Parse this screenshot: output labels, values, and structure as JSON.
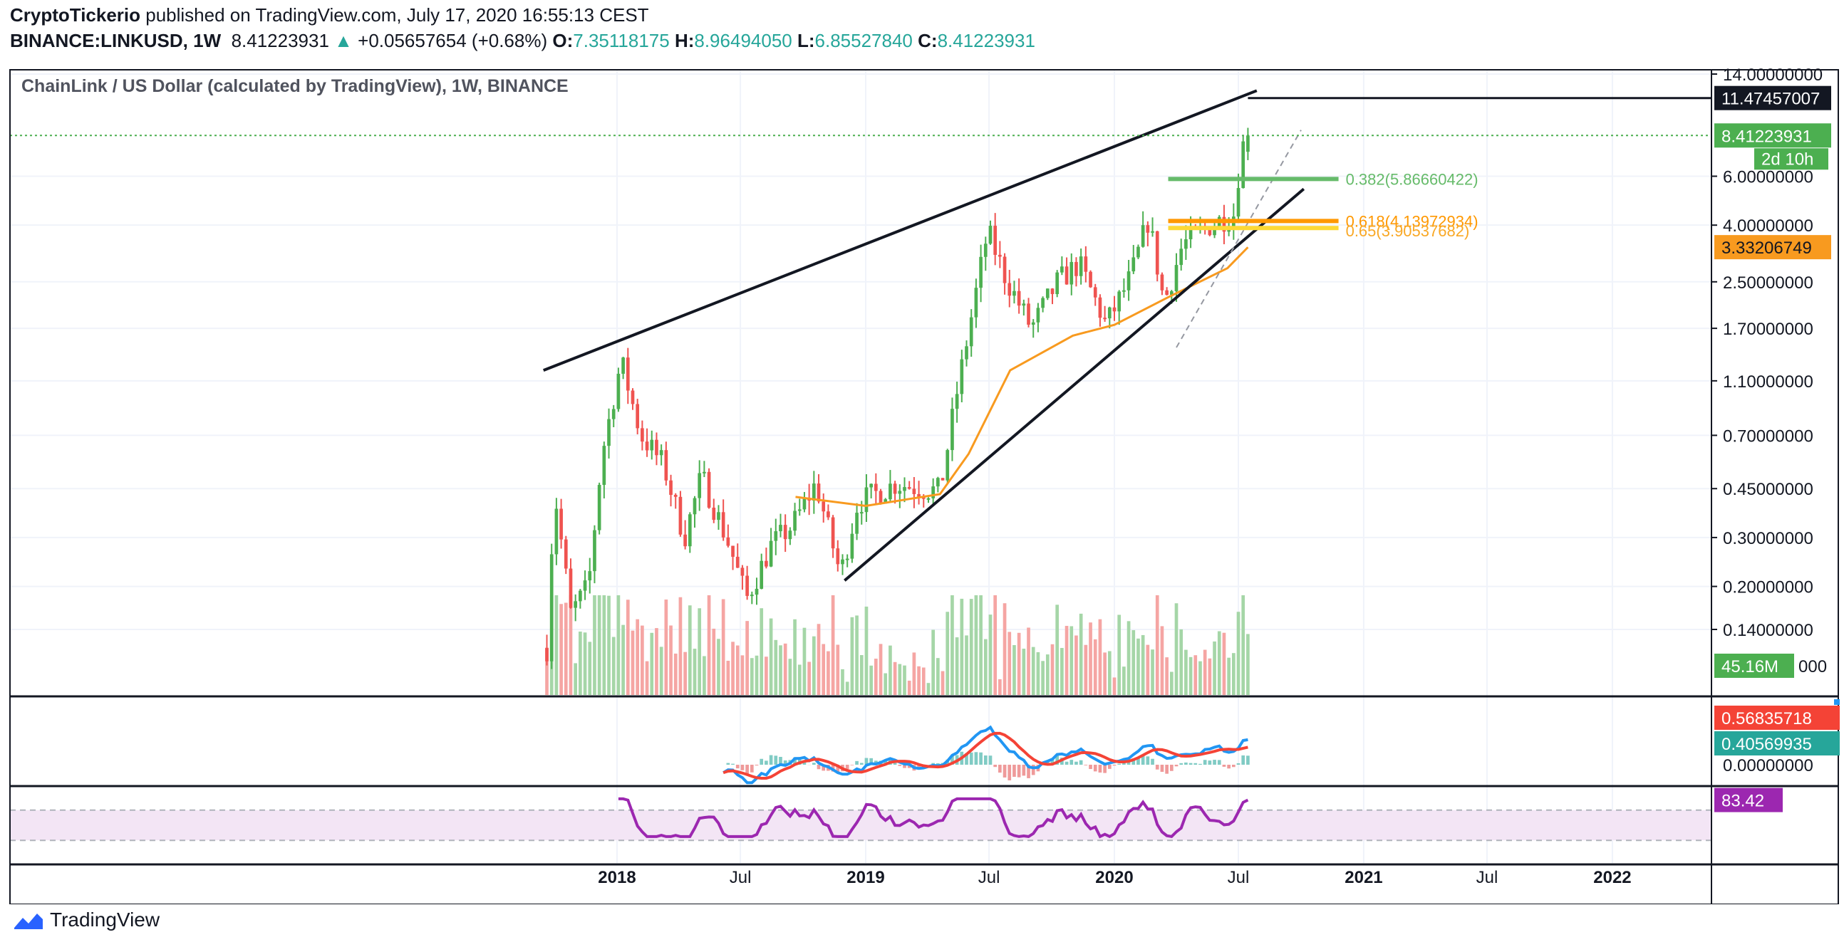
{
  "header": {
    "author": "CryptoTickerio",
    "published_text": " published on TradingView.com, July 17, 2020 16:55:13 CEST",
    "symbol": "BINANCE:LINKUSD, 1W",
    "last": "8.41223931",
    "change": "+0.05657654 (+0.68%)",
    "o_label": "O:",
    "o_val": "7.35118175",
    "h_label": "H:",
    "h_val": "8.96494050",
    "l_label": "L:",
    "l_val": "6.85527840",
    "c_label": "C:",
    "c_val": "8.41223931"
  },
  "footer": {
    "brand": "TradingView"
  },
  "colors": {
    "up": "#26a69a",
    "candle_up": "#4caf50",
    "candle_down": "#ef5350",
    "ma": "#f89a1f",
    "macd": "#2196f3",
    "signal": "#f44336",
    "rsi": "#9c27b0",
    "fib382": "#66bb6a",
    "fib618": "#ff9800",
    "fib65": "#fdd835"
  },
  "chart_data": [
    {
      "type": "candlestick",
      "title": "ChainLink / US Dollar (calculated by TradingView), 1W, BINANCE",
      "y_scale": "log",
      "ylim": [
        0.09,
        16
      ],
      "y_ticks": [
        "14.00000000",
        "6.00000000",
        "4.00000000",
        "2.50000000",
        "1.70000000",
        "1.10000000",
        "0.70000000",
        "0.45000000",
        "0.30000000",
        "0.20000000",
        "0.14000000"
      ],
      "y_tick_values": [
        14,
        6,
        4,
        2.5,
        1.7,
        1.1,
        0.7,
        0.45,
        0.3,
        0.2,
        0.14
      ],
      "x_labels": [
        "2018",
        "Jul",
        "2019",
        "Jul",
        "2020",
        "Jul",
        "2021",
        "Jul",
        "2022"
      ],
      "x_label_dates": [
        "2018-01-01",
        "2018-07-01",
        "2019-01-01",
        "2019-07-01",
        "2020-01-01",
        "2020-07-01",
        "2021-01-01",
        "2021-07-01",
        "2022-01-01"
      ],
      "closes_keypoints": [
        [
          "2017-09-20",
          0.12
        ],
        [
          "2017-10-01",
          0.45
        ],
        [
          "2017-10-25",
          0.16
        ],
        [
          "2017-11-20",
          0.2
        ],
        [
          "2017-12-10",
          0.6
        ],
        [
          "2018-01-07",
          1.3
        ],
        [
          "2018-02-05",
          0.7
        ],
        [
          "2018-03-10",
          0.55
        ],
        [
          "2018-04-10",
          0.3
        ],
        [
          "2018-05-05",
          0.5
        ],
        [
          "2018-06-15",
          0.28
        ],
        [
          "2018-07-10",
          0.18
        ],
        [
          "2018-08-15",
          0.28
        ],
        [
          "2018-09-15",
          0.33
        ],
        [
          "2018-10-20",
          0.47
        ],
        [
          "2018-11-25",
          0.22
        ],
        [
          "2018-12-20",
          0.4
        ],
        [
          "2019-02-15",
          0.47
        ],
        [
          "2019-03-25",
          0.45
        ],
        [
          "2019-04-20",
          0.44
        ],
        [
          "2019-05-15",
          1.0
        ],
        [
          "2019-06-29",
          3.8
        ],
        [
          "2019-07-25",
          2.6
        ],
        [
          "2019-09-01",
          1.7
        ],
        [
          "2019-10-10",
          2.5
        ],
        [
          "2019-11-10",
          2.9
        ],
        [
          "2019-12-20",
          1.75
        ],
        [
          "2020-01-25",
          2.6
        ],
        [
          "2020-02-20",
          4.2
        ],
        [
          "2020-03-14",
          2.1
        ],
        [
          "2020-04-10",
          3.4
        ],
        [
          "2020-05-20",
          4.0
        ],
        [
          "2020-06-25",
          4.4
        ],
        [
          "2020-07-05",
          7.5
        ],
        [
          "2020-07-15",
          8.41
        ]
      ],
      "ma": {
        "value_label": "3.33206749",
        "points": [
          [
            "2018-09-20",
            0.42
          ],
          [
            "2019-01-01",
            0.39
          ],
          [
            "2019-04-20",
            0.43
          ],
          [
            "2019-06-01",
            0.6
          ],
          [
            "2019-08-01",
            1.2
          ],
          [
            "2019-11-01",
            1.6
          ],
          [
            "2020-01-01",
            1.75
          ],
          [
            "2020-03-20",
            2.2
          ],
          [
            "2020-06-15",
            2.8
          ],
          [
            "2020-07-15",
            3.33
          ]
        ]
      },
      "trendlines": [
        {
          "p1": [
            "2017-09-15",
            1.2
          ],
          "p2": [
            "2020-07-28",
            12.2
          ]
        },
        {
          "p1": [
            "2018-12-01",
            0.21
          ],
          "p2": [
            "2020-10-05",
            5.4
          ]
        },
        {
          "p1": [
            "2020-04-01",
            1.45
          ],
          "p2": [
            "2020-10-01",
            8.8
          ],
          "dashed": true
        }
      ],
      "horizontal_line": {
        "value": 11.47457007,
        "label": "11.47457007"
      },
      "last_price": {
        "value": 8.41223931,
        "label": "8.41223931",
        "countdown": "2d 10h"
      },
      "fib_levels": [
        {
          "label": "0.382(5.86660422)",
          "value": 5.8666
        },
        {
          "label": "0.618(4.13972934)",
          "value": 4.1397
        },
        {
          "label": "0.65(3.90537682)",
          "value": 3.9054
        }
      ],
      "volume_label": "45.16M",
      "volume_axis_tick": "000"
    },
    {
      "type": "line",
      "name": "MACD",
      "y_ticks": [
        "0.00000000"
      ],
      "macd_label": "0.56835718",
      "signal_label": "0.40569935"
    },
    {
      "type": "line",
      "name": "RSI",
      "value_label": "83.42",
      "band": [
        30,
        70
      ]
    }
  ]
}
